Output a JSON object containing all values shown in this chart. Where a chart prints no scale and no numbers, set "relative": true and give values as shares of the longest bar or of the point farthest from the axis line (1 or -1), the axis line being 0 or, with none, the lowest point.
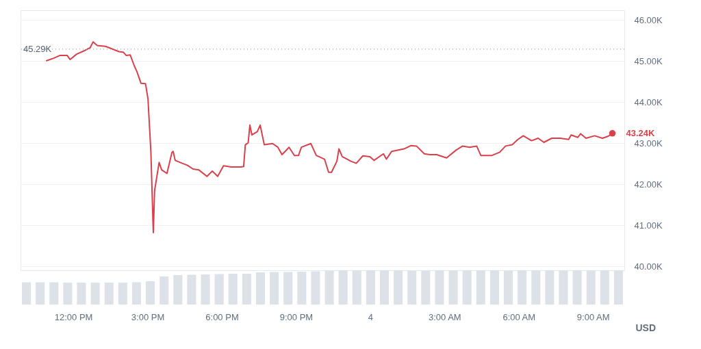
{
  "chart_data": [
    {
      "type": "line",
      "ylabel": "USD",
      "color": "#d9404a",
      "x": [
        "--01-03T10:55",
        "--01-03T11:12",
        "--01-03T11:28",
        "--01-03T11:45",
        "--01-03T11:52",
        "--01-03T12:08",
        "--01-03T12:28",
        "--01-03T12:41",
        "--01-03T12:48",
        "--01-03T12:58",
        "--01-03T13:18",
        "--01-03T13:31",
        "--01-03T13:51",
        "--01-03T14:01",
        "--01-03T14:08",
        "--01-03T14:18",
        "--01-03T14:28",
        "--01-03T14:34",
        "--01-03T14:44",
        "--01-03T14:55",
        "--01-03T15:01",
        "--01-03T15:08",
        "--01-03T15:13",
        "--01-03T15:14",
        "--01-03T15:17",
        "--01-03T15:28",
        "--01-03T15:34",
        "--01-03T15:47",
        "--01-03T15:59",
        "--01-03T16:02",
        "--01-03T16:07",
        "--01-03T16:24",
        "--01-03T16:37",
        "--01-03T16:50",
        "--01-03T17:04",
        "--01-03T17:24",
        "--01-03T17:37",
        "--01-03T17:50",
        "--01-03T18:04",
        "--01-03T18:23",
        "--01-03T18:37",
        "--01-03T18:47",
        "--01-03T18:53",
        "--01-03T18:57",
        "--01-03T19:04",
        "--01-03T19:08",
        "--01-03T19:13",
        "--01-03T19:26",
        "--01-03T19:33",
        "--01-03T19:43",
        "--01-03T20:03",
        "--01-03T20:16",
        "--01-03T20:26",
        "--01-03T20:43",
        "--01-03T20:56",
        "--01-03T21:06",
        "--01-03T21:13",
        "--01-03T21:36",
        "--01-03T21:49",
        "--01-03T22:09",
        "--01-03T22:19",
        "--01-03T22:26",
        "--01-03T22:39",
        "--01-03T22:44",
        "--01-03T22:52",
        "--01-03T23:13",
        "--01-03T23:26",
        "--01-03T23:42",
        "--01-03T23:59",
        "--01-04T00:09",
        "--01-04T00:32",
        "--01-04T00:39",
        "--01-04T00:52",
        "--01-04T01:22",
        "--01-04T01:38",
        "--01-04T01:52",
        "--01-04T02:11",
        "--01-04T02:25",
        "--01-04T02:41",
        "--01-04T03:05",
        "--01-04T03:28",
        "--01-04T03:44",
        "--01-04T04:01",
        "--01-04T04:18",
        "--01-04T04:28",
        "--01-04T04:41",
        "--01-04T04:55",
        "--01-04T05:14",
        "--01-04T05:28",
        "--01-04T05:44",
        "--01-04T05:58",
        "--01-04T06:11",
        "--01-04T06:31",
        "--01-04T06:47",
        "--01-04T07:01",
        "--01-04T07:20",
        "--01-04T07:40",
        "--01-04T08:01",
        "--01-04T08:07",
        "--01-04T08:23",
        "--01-04T08:30",
        "--01-04T08:43",
        "--01-04T09:04",
        "--01-04T09:23",
        "--01-04T09:37",
        "--01-04T09:47"
      ],
      "values": [
        45.01,
        45.07,
        45.14,
        45.14,
        45.04,
        45.17,
        45.26,
        45.33,
        45.47,
        45.38,
        45.36,
        45.31,
        45.23,
        45.22,
        45.14,
        45.15,
        44.88,
        44.75,
        44.46,
        44.45,
        44.08,
        42.8,
        41.12,
        40.82,
        41.84,
        42.53,
        42.35,
        42.26,
        42.77,
        42.8,
        42.58,
        42.51,
        42.46,
        42.37,
        42.35,
        42.19,
        42.32,
        42.19,
        42.45,
        42.42,
        42.42,
        42.42,
        42.43,
        42.96,
        43.01,
        43.44,
        43.2,
        43.28,
        43.44,
        42.96,
        42.99,
        42.9,
        42.72,
        42.9,
        42.7,
        42.7,
        42.9,
        42.99,
        42.7,
        42.61,
        42.29,
        42.29,
        42.56,
        42.86,
        42.67,
        42.56,
        42.51,
        42.69,
        42.67,
        42.58,
        42.74,
        42.61,
        42.8,
        42.86,
        42.94,
        42.93,
        42.74,
        42.72,
        42.72,
        42.64,
        42.83,
        42.93,
        42.9,
        42.93,
        42.7,
        42.7,
        42.7,
        42.78,
        42.93,
        42.96,
        43.09,
        43.18,
        43.06,
        43.12,
        43.02,
        43.12,
        43.12,
        43.09,
        43.2,
        43.14,
        43.23,
        43.12,
        43.18,
        43.12,
        43.17,
        43.24
      ],
      "xlim": [
        "--01-03T09:52",
        "--01-04T10:16"
      ],
      "xticks": [
        {
          "value": "--01-03T12:00",
          "label": "12:00 PM"
        },
        {
          "value": "--01-03T15:00",
          "label": "3:00 PM"
        },
        {
          "value": "--01-03T18:00",
          "label": "6:00 PM"
        },
        {
          "value": "--01-03T21:00",
          "label": "9:00 PM"
        },
        {
          "value": "--01-04",
          "label": "4"
        },
        {
          "value": "--01-04T03:00",
          "label": "3:00 AM"
        },
        {
          "value": "--01-04T06:00",
          "label": "6:00 AM"
        },
        {
          "value": "--01-04T09:00",
          "label": "9:00 AM"
        }
      ],
      "ylim": [
        39.9,
        46.24
      ],
      "yticks": [
        {
          "value": 40,
          "label": "40.00K"
        },
        {
          "value": 41,
          "label": "41.00K"
        },
        {
          "value": 42,
          "label": "42.00K"
        },
        {
          "value": 43,
          "label": "43.00K"
        },
        {
          "value": 44,
          "label": "44.00K"
        },
        {
          "value": 45,
          "label": "45.00K"
        },
        {
          "value": 46,
          "label": "46.00K"
        }
      ],
      "grid": "y",
      "ref_lines": [
        {
          "axis": "y",
          "value": 45.29,
          "label": "45.29K",
          "color": "#9aa3ae",
          "line_style": "dotted"
        }
      ],
      "annotations": [
        {
          "text": "43.24K",
          "x": "--01-04T09:47",
          "y": 43.24
        }
      ]
    },
    {
      "type": "bar",
      "relative": true,
      "color": "#dde1e8",
      "categories": [
        null,
        null,
        null,
        null,
        null,
        null,
        null,
        null,
        null,
        null,
        null,
        null,
        null,
        null,
        null,
        null,
        null,
        null,
        null,
        null,
        null,
        null,
        null,
        null,
        null,
        null,
        null,
        null,
        null,
        null,
        null,
        null,
        null,
        null,
        null,
        null,
        null,
        null,
        null,
        null,
        null,
        null,
        null,
        null
      ],
      "values": [
        0.65,
        0.65,
        0.65,
        0.64,
        0.64,
        0.64,
        0.64,
        0.64,
        0.65,
        0.68,
        0.82,
        0.86,
        0.87,
        0.88,
        0.89,
        0.9,
        0.9,
        0.94,
        0.95,
        0.95,
        0.96,
        0.97,
        0.99,
        1.0,
        1.0,
        1.0,
        1.0,
        1.0,
        0.99,
        0.99,
        1.0,
        1.0,
        1.0,
        1.0,
        1.0,
        0.99,
        1.0,
        1.0,
        1.0,
        1.0,
        1.0,
        1.0,
        1.0,
        1.0
      ]
    }
  ]
}
